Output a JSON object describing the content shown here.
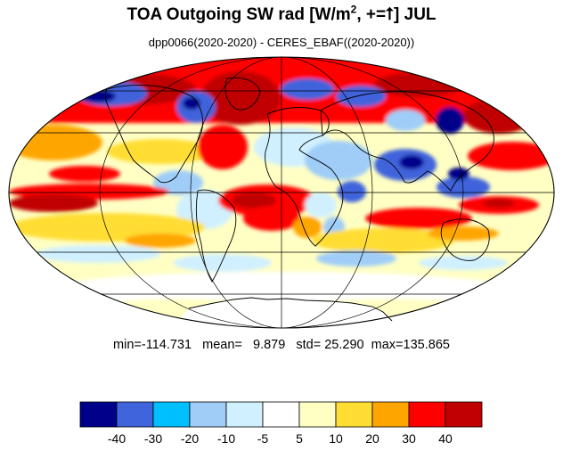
{
  "title": {
    "prefix": "TOA Outgoing SW rad [W/m",
    "exponent": "2",
    "mid": ", +=",
    "arrow": "⭡",
    "suffix": "] JUL"
  },
  "subtitle": "dpp0066(2020-2020) - CERES_EBAF((2020-2020))",
  "stats": {
    "min_label": "min=",
    "min": "-114.731",
    "mean_label": "mean=",
    "mean": "9.879",
    "std_label": "std=",
    "std": "25.290",
    "max_label": "max=",
    "max": "135.865"
  },
  "colorbar": {
    "colors": [
      "#00008b",
      "#3f64dc",
      "#00bfff",
      "#9fcdf8",
      "#d0f0ff",
      "#ffffff",
      "#ffffc4",
      "#ffdd33",
      "#ffa500",
      "#ff0000",
      "#c00000"
    ],
    "tick_labels": [
      "-40",
      "-30",
      "-20",
      "-10",
      "-5",
      "5",
      "10",
      "20",
      "30",
      "40"
    ]
  },
  "map": {
    "projection": "Mollweide",
    "ocean_background": "#ffffc4",
    "coastline_color": "#000000",
    "graticule_color": "#000000"
  }
}
